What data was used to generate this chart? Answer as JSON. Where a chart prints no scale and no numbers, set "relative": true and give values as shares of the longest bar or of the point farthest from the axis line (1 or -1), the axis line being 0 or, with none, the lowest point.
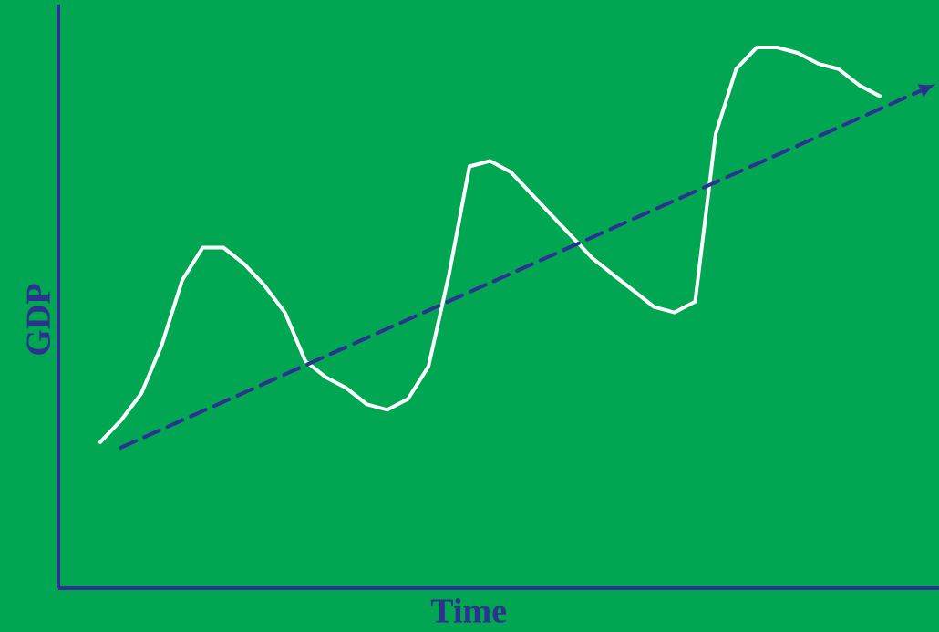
{
  "chart_data": {
    "type": "line",
    "relative": true,
    "xlabel": "Time",
    "ylabel": "GDP",
    "categories": [
      null,
      null,
      null,
      null,
      null,
      null,
      null,
      null,
      null,
      null,
      null,
      null,
      null,
      null,
      null,
      null,
      null,
      null,
      null,
      null,
      null,
      null,
      null,
      null,
      null,
      null,
      null,
      null,
      null,
      null,
      null,
      null,
      null,
      null,
      null,
      null,
      null,
      null,
      null,
      null,
      null
    ],
    "series": [
      {
        "color": "#ffffff",
        "line_style": "solid",
        "values": [
          0.27,
          0.31,
          0.36,
          0.45,
          0.57,
          0.63,
          0.63,
          0.6,
          0.56,
          0.51,
          0.42,
          0.39,
          0.37,
          0.34,
          0.33,
          0.35,
          0.41,
          0.58,
          0.78,
          0.79,
          0.77,
          0.73,
          0.69,
          0.65,
          0.61,
          0.58,
          0.55,
          0.52,
          0.51,
          0.53,
          0.84,
          0.96,
          1.0,
          1.0,
          0.99,
          0.97,
          0.96,
          0.93,
          0.91,
          null,
          null
        ]
      },
      {
        "color": "#2e3192",
        "line_style": "dashed",
        "values": [
          null,
          0.26,
          null,
          null,
          null,
          null,
          null,
          null,
          null,
          null,
          null,
          null,
          null,
          null,
          null,
          null,
          null,
          null,
          null,
          null,
          null,
          null,
          null,
          null,
          null,
          null,
          null,
          null,
          null,
          null,
          null,
          null,
          null,
          null,
          null,
          null,
          null,
          null,
          null,
          null,
          0.92
        ]
      }
    ]
  }
}
